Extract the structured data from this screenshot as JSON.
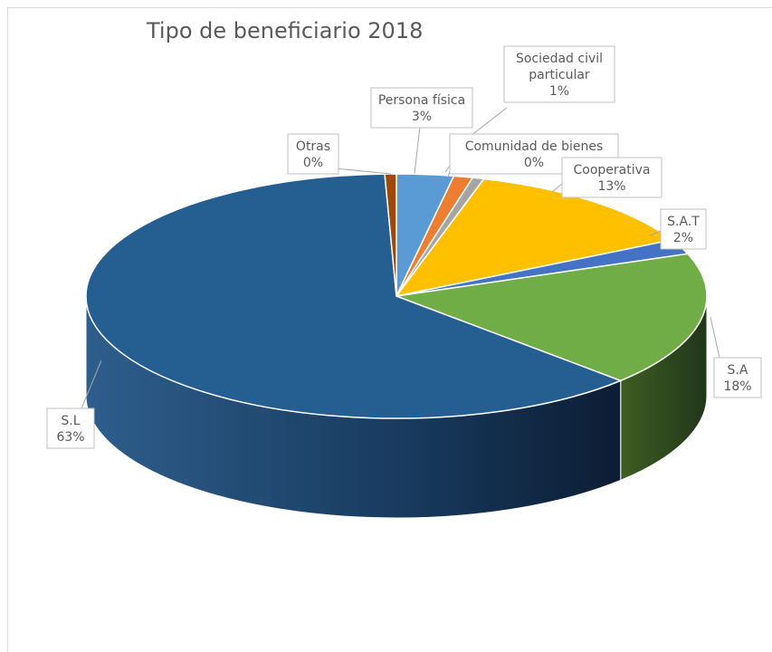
{
  "chart_data": {
    "type": "pie",
    "title": "Tipo de beneficiario 2018",
    "slices": [
      {
        "label": "Persona física",
        "value": 3,
        "display": "3%",
        "color": "#5b9bd5"
      },
      {
        "label": "Sociedad civil particular",
        "label_lines": [
          "Sociedad civil",
          "particular"
        ],
        "value": 1,
        "display": "1%",
        "color": "#ed7d31"
      },
      {
        "label": "Comunidad de bienes",
        "value": 0,
        "display": "0%",
        "color": "#a5a5a5"
      },
      {
        "label": "Cooperativa",
        "value": 13,
        "display": "13%",
        "color": "#ffc000"
      },
      {
        "label": "S.A.T",
        "value": 2,
        "display": "2%",
        "color": "#4472c4"
      },
      {
        "label": "S.A",
        "value": 18,
        "display": "18%",
        "color": "#70ad47"
      },
      {
        "label": "S.L",
        "value": 63,
        "display": "63%",
        "color": "#255e91"
      },
      {
        "label": "Otras",
        "value": 0,
        "display": "0%",
        "color": "#9e480e"
      }
    ],
    "legend": "none",
    "style": "3d-pie"
  }
}
